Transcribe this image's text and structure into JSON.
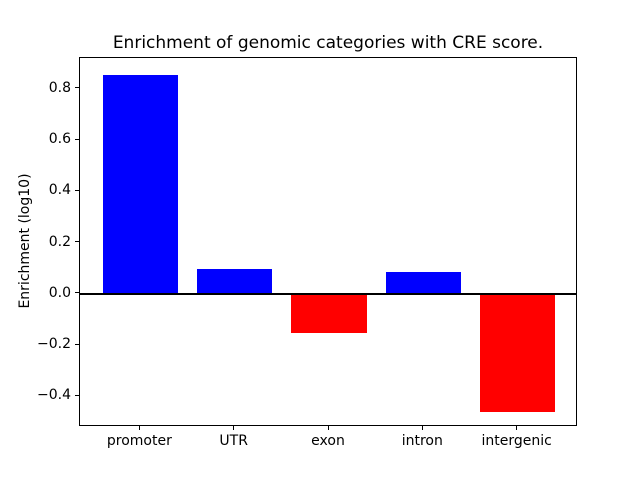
{
  "chart_data": {
    "type": "bar",
    "title": "Enrichment of genomic categories with CRE score.",
    "xlabel": "",
    "ylabel": "Enrichment (log10)",
    "categories": [
      "promoter",
      "UTR",
      "exon",
      "intron",
      "intergenic"
    ],
    "values": [
      0.855,
      0.095,
      -0.155,
      0.085,
      -0.46
    ],
    "bar_colors": [
      "#0000ff",
      "#0000ff",
      "#ff0000",
      "#0000ff",
      "#ff0000"
    ],
    "positive_color": "#0000ff",
    "negative_color": "#ff0000",
    "ylim": [
      -0.52,
      0.92
    ],
    "yticks": [
      0.8,
      0.6,
      0.4,
      0.2,
      0.0,
      -0.2,
      -0.4
    ],
    "ytick_labels": [
      "0.8",
      "0.6",
      "0.4",
      "0.2",
      "0.0",
      "−0.2",
      "−0.4"
    ],
    "bar_rel_width": 0.8,
    "x_margin": 0.64,
    "grid": false,
    "legend": null,
    "zero_line": true,
    "background_color": "#ffffff",
    "axis_color": "#000000"
  }
}
